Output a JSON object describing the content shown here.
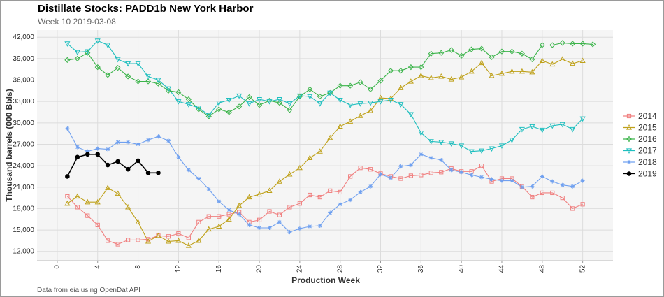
{
  "title": "Distillate Stocks: PADD1b New York Harbor",
  "subtitle": "Week 10   2019-03-08",
  "footer": "Data from eia using OpenDat API",
  "chart_data": {
    "type": "line",
    "xlabel": "Production Week",
    "ylabel": "Thousand barrels (000 Bbls)",
    "xlim": [
      -2,
      55
    ],
    "ylim": [
      10700,
      43000
    ],
    "xticks": [
      0,
      4,
      8,
      12,
      16,
      20,
      24,
      28,
      32,
      36,
      40,
      44,
      48,
      52
    ],
    "yticks": [
      12000,
      15000,
      18000,
      21000,
      24000,
      27000,
      30000,
      33000,
      36000,
      39000,
      42000
    ],
    "ytick_labels": [
      "12,000",
      "15,000",
      "18,000",
      "21,000",
      "24,000",
      "27,000",
      "30,000",
      "33,000",
      "36,000",
      "39,000",
      "42,000"
    ],
    "grid": true,
    "legend_position": "right",
    "series": [
      {
        "name": "2014",
        "color": "#f08080",
        "marker": "square",
        "values": [
          19700,
          18200,
          17000,
          15700,
          13500,
          13000,
          13600,
          13600,
          13700,
          14200,
          14100,
          14500,
          13900,
          16100,
          16900,
          16900,
          17200,
          17500,
          16100,
          16400,
          17600,
          17100,
          18200,
          18700,
          19900,
          19600,
          20500,
          20300,
          22500,
          23700,
          23500,
          22900,
          22500,
          22200,
          22600,
          22700,
          23000,
          23100,
          23600,
          23200,
          23200,
          24000,
          21800,
          22200,
          22200,
          21100,
          19600,
          20200,
          20200,
          19500,
          18000,
          18600
        ]
      },
      {
        "name": "2015",
        "color": "#bfa11a",
        "marker": "triangle",
        "values": [
          18700,
          19700,
          18900,
          18900,
          20900,
          20100,
          18200,
          16100,
          13400,
          14200,
          13400,
          13500,
          12800,
          13500,
          15100,
          15500,
          16500,
          18400,
          19600,
          20000,
          20500,
          21800,
          22800,
          23700,
          25100,
          26000,
          27900,
          29500,
          30200,
          31000,
          31700,
          33500,
          33400,
          34900,
          35800,
          36600,
          36300,
          36500,
          36100,
          36400,
          37200,
          38400,
          36600,
          36900,
          37200,
          37200,
          37100,
          38700,
          38200,
          38900,
          38300,
          38700
        ]
      },
      {
        "name": "2016",
        "color": "#3cb44b",
        "marker": "diamond",
        "values": [
          38800,
          39000,
          39800,
          37800,
          36700,
          37700,
          36500,
          35800,
          35800,
          35500,
          34500,
          34300,
          33300,
          31900,
          30900,
          31900,
          31500,
          32300,
          33600,
          32500,
          33100,
          32800,
          31800,
          33700,
          34700,
          33700,
          34200,
          35200,
          35200,
          35700,
          34700,
          35900,
          37300,
          37300,
          37800,
          37800,
          39700,
          39800,
          40200,
          39400,
          40300,
          40400,
          39200,
          40000,
          40000,
          39700,
          38900,
          40900,
          40900,
          41200,
          41100,
          41100,
          41000
        ]
      },
      {
        "name": "2017",
        "color": "#1fbfbf",
        "marker": "triangle-down",
        "values": [
          41100,
          39900,
          40000,
          41500,
          40900,
          38900,
          38300,
          38300,
          36500,
          36000,
          34800,
          33000,
          32600,
          32100,
          31100,
          32800,
          33200,
          33800,
          32700,
          33300,
          33000,
          33300,
          32700,
          33800,
          33700,
          32700,
          34200,
          33200,
          32500,
          32700,
          32800,
          33000,
          33200,
          32600,
          31200,
          28600,
          27400,
          27300,
          27100,
          26800,
          26000,
          26100,
          26400,
          26800,
          27600,
          29100,
          29500,
          29000,
          29600,
          29800,
          29100,
          30600
        ]
      },
      {
        "name": "2018",
        "color": "#6fa0f0",
        "marker": "star",
        "values": [
          29200,
          26600,
          26000,
          26400,
          26300,
          27300,
          27300,
          27000,
          27600,
          28100,
          27500,
          25200,
          23400,
          22200,
          20700,
          19000,
          17800,
          17200,
          15700,
          15300,
          15300,
          16100,
          14700,
          15200,
          15500,
          15600,
          17400,
          18600,
          19200,
          20300,
          21100,
          22800,
          22300,
          23900,
          24100,
          25600,
          25100,
          24800,
          23400,
          23100,
          22700,
          22400,
          22100,
          21900,
          21900,
          21000,
          21100,
          22500,
          21800,
          21300,
          21100,
          21900
        ]
      },
      {
        "name": "2019",
        "color": "#000000",
        "marker": "circle",
        "values": [
          22500,
          25200,
          25600,
          25600,
          24100,
          24600,
          23500,
          24700,
          23000,
          23000
        ]
      }
    ]
  }
}
